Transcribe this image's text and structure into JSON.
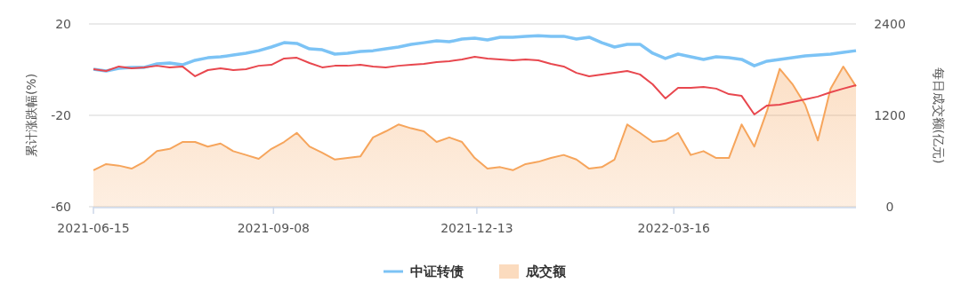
{
  "chart_data": {
    "type": "line",
    "ylabel": "累计涨跌幅(%)",
    "y2label": "每日成交额(亿元)",
    "x": [
      "2021-06-15",
      "2021-06-21",
      "2021-06-27",
      "2021-07-03",
      "2021-07-09",
      "2021-07-15",
      "2021-07-21",
      "2021-07-27",
      "2021-08-02",
      "2021-08-08",
      "2021-08-14",
      "2021-08-20",
      "2021-08-26",
      "2021-09-01",
      "2021-09-07",
      "2021-09-13",
      "2021-09-19",
      "2021-09-25",
      "2021-10-01",
      "2021-10-07",
      "2021-10-13",
      "2021-10-19",
      "2021-10-25",
      "2021-10-31",
      "2021-11-06",
      "2021-11-12",
      "2021-11-18",
      "2021-11-24",
      "2021-11-30",
      "2021-12-06",
      "2021-12-12",
      "2021-12-18",
      "2021-12-24",
      "2021-12-30",
      "2022-01-05",
      "2022-01-11",
      "2022-01-17",
      "2022-01-23",
      "2022-01-29",
      "2022-02-04",
      "2022-02-10",
      "2022-02-16",
      "2022-02-22",
      "2022-02-28",
      "2022-03-06",
      "2022-03-12",
      "2022-03-18",
      "2022-03-24",
      "2022-03-30",
      "2022-04-05",
      "2022-04-11",
      "2022-04-17",
      "2022-04-23",
      "2022-04-29",
      "2022-05-05",
      "2022-05-11",
      "2022-05-17",
      "2022-05-23",
      "2022-05-29",
      "2022-06-04",
      "2022-06-10"
    ],
    "series": [
      {
        "name": "中证转债",
        "color": "#7cc3f5",
        "values": [
          0.2,
          -0.6,
          0.6,
          1.0,
          1.0,
          2.5,
          2.9,
          2.1,
          4.1,
          5.2,
          5.6,
          6.4,
          7.2,
          8.3,
          9.9,
          11.8,
          11.5,
          9.1,
          8.7,
          6.8,
          7.2,
          8.0,
          8.3,
          9.1,
          9.9,
          11.1,
          11.8,
          12.6,
          12.2,
          13.4,
          13.8,
          13.0,
          14.2,
          14.2,
          14.6,
          14.9,
          14.6,
          14.6,
          13.4,
          14.2,
          11.8,
          9.9,
          11.1,
          11.1,
          7.2,
          4.9,
          6.8,
          5.6,
          4.5,
          5.6,
          5.2,
          4.5,
          1.7,
          3.7,
          4.5,
          5.2,
          6.0,
          6.4,
          6.8,
          7.6,
          8.3
        ]
      },
      {
        "name": "成交额",
        "type": "area",
        "axis": "y2",
        "color": "#f6a55c",
        "values": [
          480,
          560,
          540,
          500,
          590,
          730,
          760,
          850,
          850,
          790,
          830,
          730,
          680,
          630,
          760,
          850,
          970,
          790,
          710,
          620,
          640,
          660,
          910,
          990,
          1080,
          1030,
          990,
          850,
          910,
          850,
          640,
          500,
          520,
          480,
          560,
          590,
          640,
          680,
          620,
          500,
          520,
          620,
          1080,
          970,
          850,
          870,
          970,
          680,
          730,
          640,
          640,
          1080,
          790,
          1260,
          1810,
          1610,
          1340,
          870,
          1550,
          1840,
          1580
        ]
      },
      {
        "color": "#e8474e",
        "values": [
          0.2,
          -0.6,
          1.4,
          0.6,
          1.0,
          1.7,
          1.0,
          1.4,
          -2.9,
          -0.2,
          0.6,
          -0.2,
          0.2,
          1.7,
          2.1,
          4.9,
          5.2,
          2.9,
          1.0,
          1.7,
          1.7,
          2.1,
          1.4,
          1.0,
          1.7,
          2.1,
          2.5,
          3.3,
          3.7,
          4.5,
          5.6,
          4.9,
          4.5,
          4.1,
          4.5,
          4.1,
          2.5,
          1.4,
          -1.4,
          -2.9,
          -2.1,
          -1.4,
          -0.6,
          -2.1,
          -6.4,
          -12.6,
          -8.0,
          -8.0,
          -7.6,
          -8.3,
          -10.7,
          -11.5,
          -19.6,
          -15.7,
          -15.3,
          -14.2,
          -13.0,
          -11.8,
          -9.9,
          -8.3,
          -6.8
        ]
      }
    ],
    "xlim": [
      "2021-06-15",
      "2022-06-10"
    ],
    "xticks": [
      "2021-06-15",
      "2021-09-08",
      "2021-12-13",
      "2022-03-16"
    ],
    "ylim": [
      -60,
      20
    ],
    "yticks": [
      -60,
      -20,
      20
    ],
    "y2lim": [
      0,
      2400
    ],
    "y2ticks": [
      0,
      1200,
      2400
    ],
    "grid": "y",
    "legend": "bottom"
  }
}
